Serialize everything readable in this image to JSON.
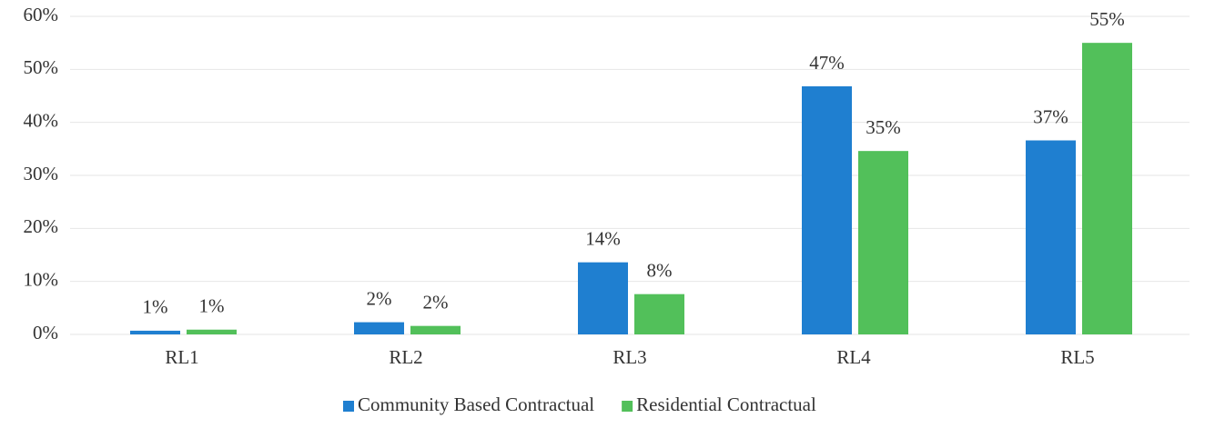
{
  "chart_data": {
    "type": "bar",
    "categories": [
      "RL1",
      "RL2",
      "RL3",
      "RL4",
      "RL5"
    ],
    "series": [
      {
        "name": "Community Based Contractual",
        "color": "#1f7fd0",
        "values": [
          0.7,
          2.3,
          13.6,
          46.8,
          36.6
        ],
        "value_labels": [
          "1%",
          "2%",
          "14%",
          "47%",
          "37%"
        ]
      },
      {
        "name": "Residential Contractual",
        "color": "#52c05a",
        "values": [
          0.9,
          1.6,
          7.6,
          34.6,
          55
        ],
        "value_labels": [
          "1%",
          "2%",
          "8%",
          "35%",
          "55%"
        ]
      }
    ],
    "ylim": [
      0,
      60
    ],
    "yticks": [
      {
        "value": 0,
        "label": "0%"
      },
      {
        "value": 10,
        "label": "10%"
      },
      {
        "value": 20,
        "label": "20%"
      },
      {
        "value": 30,
        "label": "30%"
      },
      {
        "value": 40,
        "label": "40%"
      },
      {
        "value": 50,
        "label": "50%"
      },
      {
        "value": 60,
        "label": "60%"
      }
    ],
    "grid": true,
    "legend": "bottom"
  }
}
